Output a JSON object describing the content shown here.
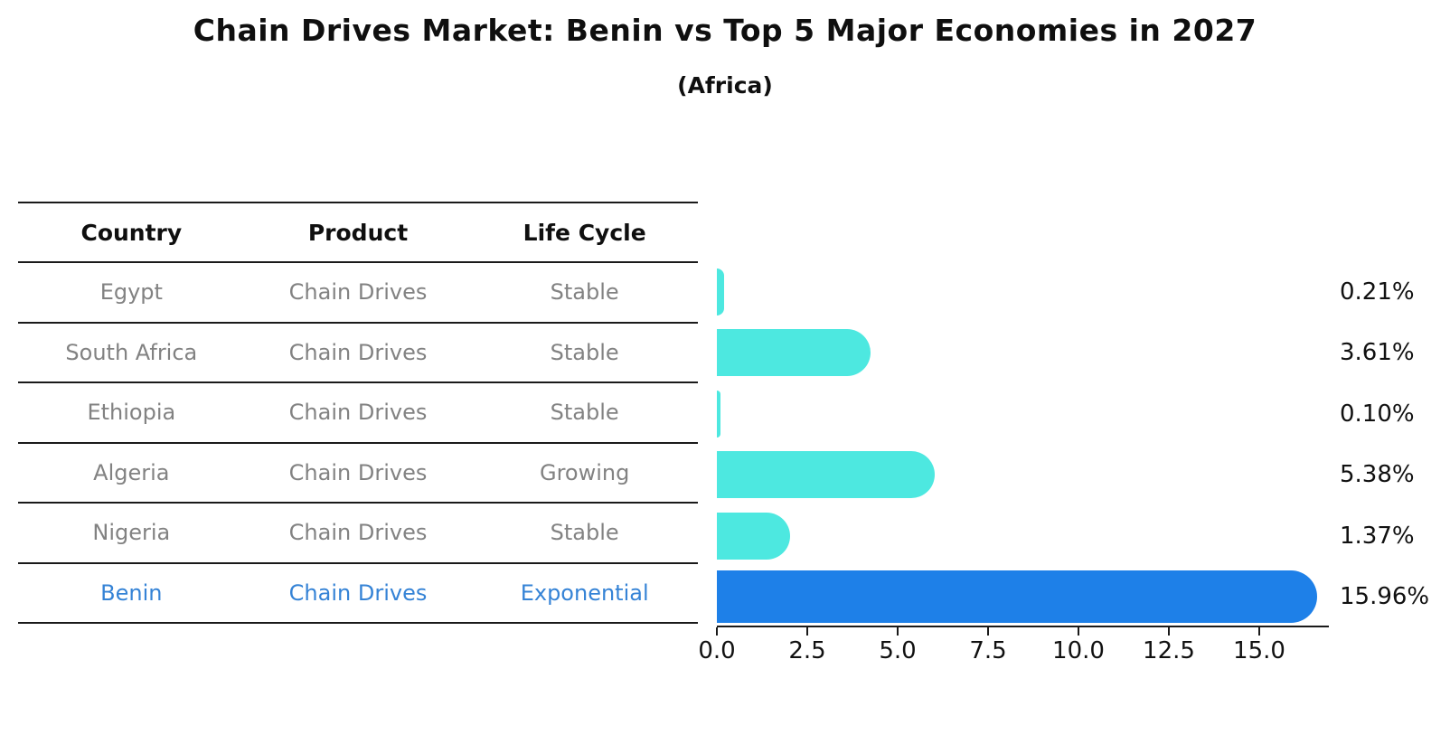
{
  "title": "Chain Drives Market: Benin vs Top 5 Major Economies in 2027",
  "subtitle": "(Africa)",
  "table": {
    "headers": [
      "Country",
      "Product",
      "Life Cycle"
    ],
    "rows": [
      {
        "country": "Egypt",
        "product": "Chain Drives",
        "life_cycle": "Stable",
        "highlight": false
      },
      {
        "country": "South Africa",
        "product": "Chain Drives",
        "life_cycle": "Stable",
        "highlight": false
      },
      {
        "country": "Ethiopia",
        "product": "Chain Drives",
        "life_cycle": "Stable",
        "highlight": false
      },
      {
        "country": "Algeria",
        "product": "Chain Drives",
        "life_cycle": "Growing",
        "highlight": false
      },
      {
        "country": "Nigeria",
        "product": "Chain Drives",
        "life_cycle": "Stable",
        "highlight": false
      },
      {
        "country": "Benin",
        "product": "Chain Drives",
        "life_cycle": "Exponential",
        "highlight": true
      }
    ]
  },
  "chart_data": {
    "type": "bar",
    "orientation": "horizontal",
    "title": "Chain Drives Market: Benin vs Top 5 Major Economies in 2027",
    "subtitle": "(Africa)",
    "categories": [
      "Egypt",
      "South Africa",
      "Ethiopia",
      "Algeria",
      "Nigeria",
      "Benin"
    ],
    "values": [
      0.21,
      3.61,
      0.1,
      5.38,
      1.37,
      15.96
    ],
    "value_labels": [
      "0.21%",
      "3.61%",
      "0.10%",
      "5.38%",
      "1.37%",
      "15.96%"
    ],
    "x_tick_labels": [
      "0.0",
      "2.5",
      "5.0",
      "7.5",
      "10.0",
      "12.5",
      "15.0"
    ],
    "x_tick_values": [
      0,
      2.5,
      5,
      7.5,
      10,
      12.5,
      15
    ],
    "xlim": [
      0,
      16.9
    ],
    "grid": false,
    "legend": false,
    "highlight_index": 5
  },
  "colors": {
    "bar": "#4DE8E0",
    "highlight_bar": "#1E80E8",
    "highlight_text": "#3583d6",
    "table_text": "#828282",
    "axis_text": "#111111",
    "line": "#1a1a1a"
  }
}
